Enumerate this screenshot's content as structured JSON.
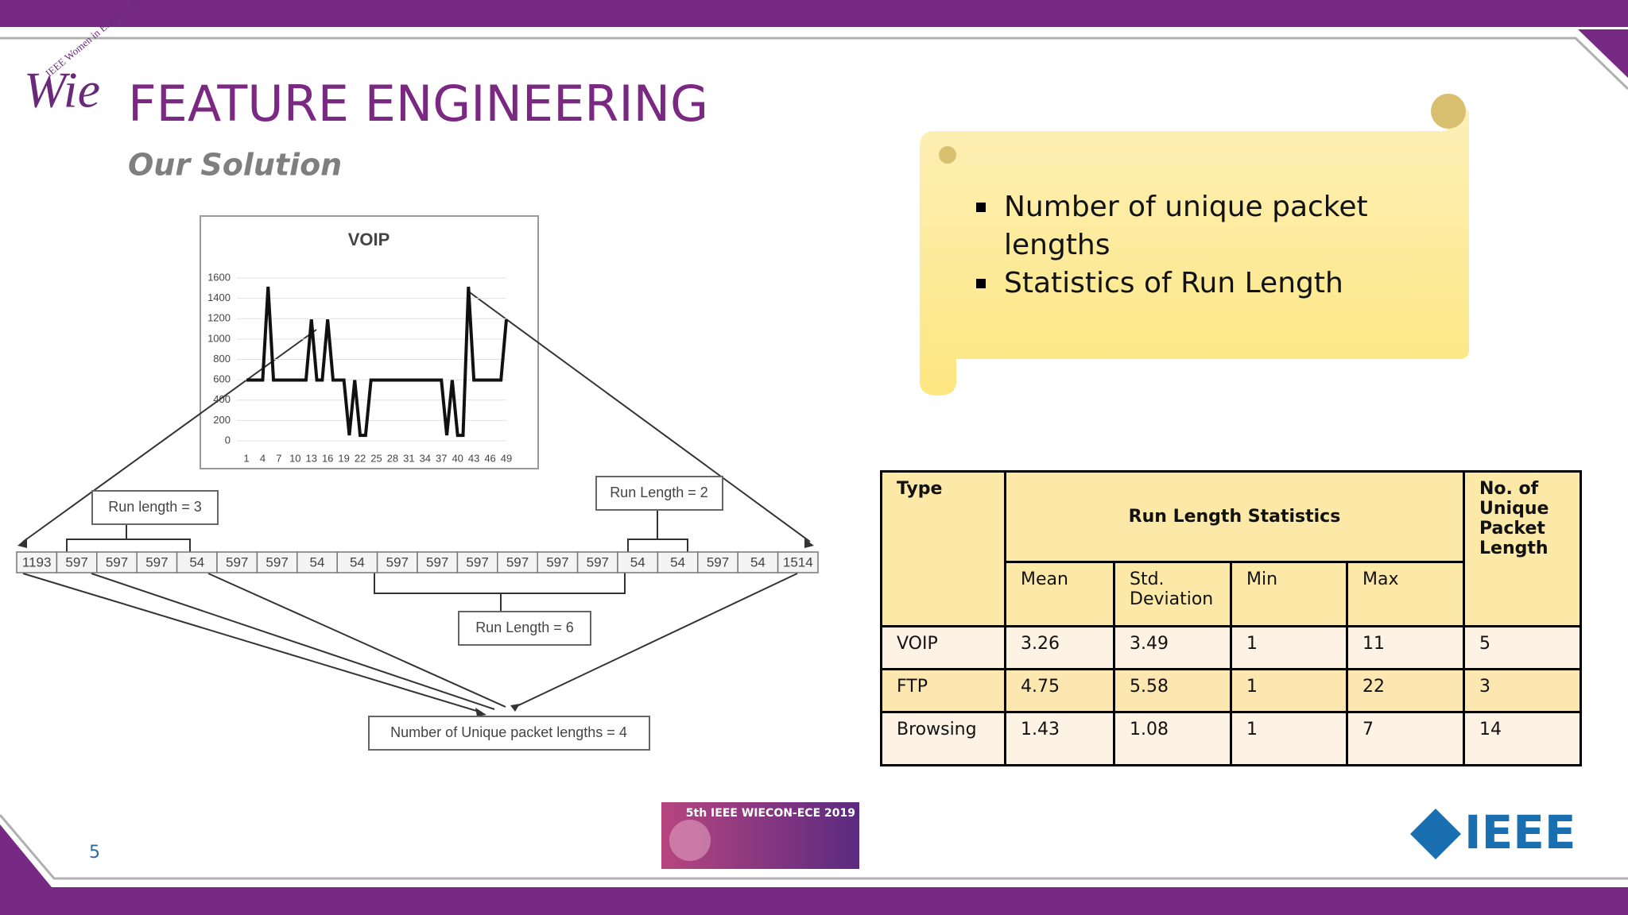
{
  "header": {
    "logo_text": "IEEE Women in Engineering",
    "logo_mark": "Wie",
    "title": "FEATURE ENGINEERING",
    "subtitle": "Our Solution"
  },
  "diagram": {
    "chart": {
      "type": "line",
      "title": "VOIP",
      "ylim": [
        0,
        1600
      ],
      "yticks": [
        0,
        200,
        400,
        600,
        800,
        1000,
        1200,
        1400,
        1600
      ],
      "xticks": [
        1,
        4,
        7,
        10,
        13,
        16,
        19,
        22,
        25,
        28,
        31,
        34,
        37,
        40,
        43,
        46,
        49
      ],
      "values": [
        597,
        597,
        597,
        597,
        1514,
        597,
        597,
        597,
        597,
        597,
        597,
        597,
        1193,
        597,
        597,
        1193,
        597,
        597,
        597,
        54,
        597,
        54,
        54,
        597,
        597,
        597,
        597,
        597,
        597,
        597,
        597,
        597,
        597,
        597,
        597,
        597,
        597,
        54,
        597,
        54,
        54,
        1514,
        597,
        597,
        597,
        597,
        597,
        597,
        1193
      ],
      "color": "#111111"
    },
    "packets": [
      "1193",
      "597",
      "597",
      "597",
      "54",
      "597",
      "597",
      "54",
      "54",
      "597",
      "597",
      "597",
      "597",
      "597",
      "597",
      "54",
      "54",
      "597",
      "54",
      "1514"
    ],
    "labels": {
      "run3": "Run length = 3",
      "run2": "Run Length = 2",
      "run6": "Run Length = 6",
      "unique": "Number of Unique packet lengths = 4"
    }
  },
  "callout": {
    "bullets": [
      "Number of unique packet lengths",
      "Statistics of Run Length"
    ]
  },
  "table": {
    "header": {
      "type": "Type",
      "group": "Run Length Statistics",
      "unique": "No. of Unique Packet Length",
      "sub": [
        "Mean",
        "Std. Deviation",
        "Min",
        "Max"
      ]
    },
    "rows": [
      [
        "VOIP",
        "3.26",
        "3.49",
        "1",
        "11",
        "5"
      ],
      [
        "FTP",
        "4.75",
        "5.58",
        "1",
        "22",
        "3"
      ],
      [
        "Browsing",
        "1.43",
        "1.08",
        "1",
        "7",
        "14"
      ]
    ]
  },
  "footer": {
    "page_number": "5",
    "conference": "5th IEEE WIECON-ECE 2019",
    "ieee": "IEEE"
  }
}
